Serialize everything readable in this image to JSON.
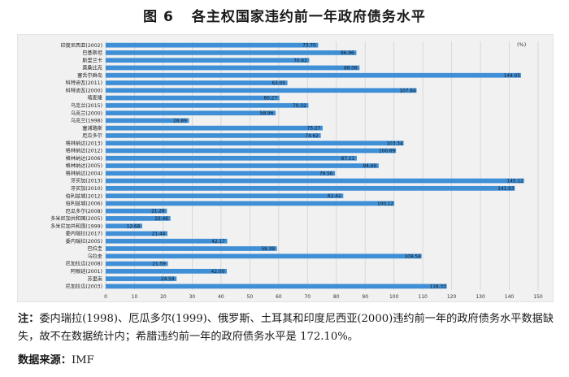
{
  "figure": {
    "number": "图 6",
    "title": "各主权国家违约前一年政府债务水平"
  },
  "chart_data": {
    "type": "bar",
    "orientation": "horizontal",
    "unit": "(%)",
    "xlim": [
      0,
      150
    ],
    "xticks": [
      0,
      10,
      20,
      30,
      40,
      50,
      60,
      70,
      80,
      90,
      100,
      110,
      120,
      130,
      140,
      150
    ],
    "grid": true,
    "bar_color": "#3f8fd6",
    "categories": [
      "印度尼西亚(2002)",
      "巴基斯坦",
      "斯里兰卡",
      "莫桑比克",
      "塞舌尔群岛",
      "科特迪瓦(2011)",
      "科特迪瓦(2000)",
      "喀麦隆",
      "乌克兰(2015)",
      "乌克兰(2000)",
      "乌克兰(1998)",
      "塞浦路斯",
      "厄瓜多尔",
      "格林纳达(2013)",
      "格林纳达(2012)",
      "格林纳达(2006)",
      "格林纳达(2005)",
      "格林纳达(2004)",
      "牙买加(2013)",
      "牙买加(2010)",
      "伯利兹城(2012)",
      "伯利兹城(2006)",
      "厄瓜多尔(2008)",
      "多米尼加共和国(2005)",
      "多米尼加共和国(1999)",
      "委内瑞拉(2017)",
      "委内瑞拉(2005)",
      "巴拉圭",
      "乌拉圭",
      "尼加拉瓜(2008)",
      "阿根廷(2001)",
      "苏里南",
      "尼加拉瓜(2003)"
    ],
    "values": [
      73.7,
      86.96,
      70.62,
      88.06,
      144.05,
      63.05,
      107.84,
      60.27,
      70.32,
      58.96,
      28.89,
      75.27,
      74.62,
      103.34,
      100.69,
      87.11,
      94.69,
      79.56,
      145.12,
      141.93,
      82.42,
      100.12,
      21.26,
      22.46,
      12.68,
      21.44,
      42.17,
      59.39,
      109.58,
      21.59,
      42.0,
      24.59,
      118.33
    ],
    "value_labels": [
      "73.70",
      "86.96",
      "70.62",
      "88.06",
      "144.05",
      "63.05",
      "107.84",
      "60.27",
      "70.32",
      "58.96",
      "28.89",
      "75.27",
      "74.62",
      "103.34",
      "100.69",
      "87.11",
      "94.69",
      "79.56",
      "145.12",
      "141.93",
      "82.42",
      "100.12",
      "21.26",
      "22.46",
      "12.68",
      "21.44",
      "42.17",
      "59.39",
      "109.58",
      "21.59",
      "42.00",
      "24.59",
      "118.33"
    ]
  },
  "note": {
    "label": "注：",
    "text": "委内瑞拉(1998)、厄瓜多尔(1999)、俄罗斯、土耳其和印度尼西亚(2000)违约前一年的政府债务水平数据缺失，故不在数据统计内；希腊违约前一年的政府债务水平是 172.10%。"
  },
  "source": {
    "label": "数据来源：",
    "text": "IMF"
  }
}
